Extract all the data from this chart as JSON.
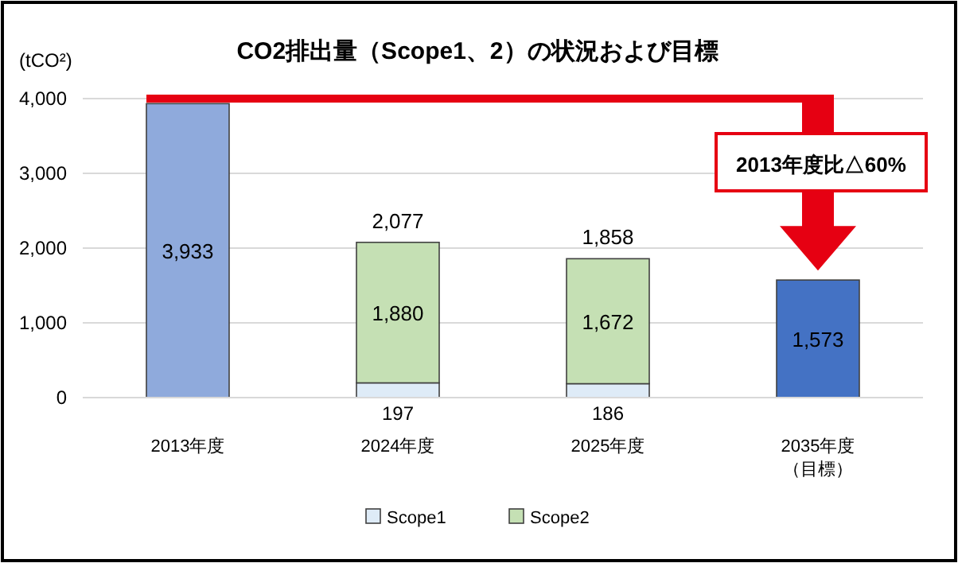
{
  "chart_data": {
    "type": "bar",
    "title": "CO2排出量（Scope1、2）の状況および目標",
    "ylabel": "(tCO²)",
    "categories": [
      "2013年度",
      "2024年度",
      "2025年度",
      "2035年度（目標）"
    ],
    "stacked": true,
    "series": [
      {
        "name": "Scope1",
        "color": "#deebf7",
        "values": [
          null,
          197,
          186,
          null
        ],
        "value_labels": [
          null,
          "197",
          "186",
          null
        ]
      },
      {
        "name": "Scope2",
        "color": "#c5e0b4",
        "values": [
          null,
          1880,
          1672,
          null
        ],
        "value_labels": [
          null,
          "1,880",
          "1,672",
          null
        ]
      },
      {
        "colors": [
          "#8faadc",
          null,
          null,
          "#4472c4"
        ],
        "values": [
          3933,
          null,
          null,
          1573
        ],
        "value_labels": [
          "3,933",
          null,
          null,
          "1,573"
        ]
      }
    ],
    "totals": [
      null,
      "2,077",
      "1,858",
      null
    ],
    "ylim": [
      0,
      4000
    ],
    "yticks": [
      {
        "value": 0,
        "label": "0"
      },
      {
        "value": 1000,
        "label": "1,000"
      },
      {
        "value": 2000,
        "label": "2,000"
      },
      {
        "value": 3000,
        "label": "3,000"
      },
      {
        "value": 4000,
        "label": "4,000"
      }
    ],
    "grid": "y",
    "legend": "bottom",
    "ref_lines": [
      {
        "axis": "y",
        "value": 4000,
        "color": "#e60012"
      }
    ],
    "annotations": [
      "2013年度比△60%"
    ]
  }
}
